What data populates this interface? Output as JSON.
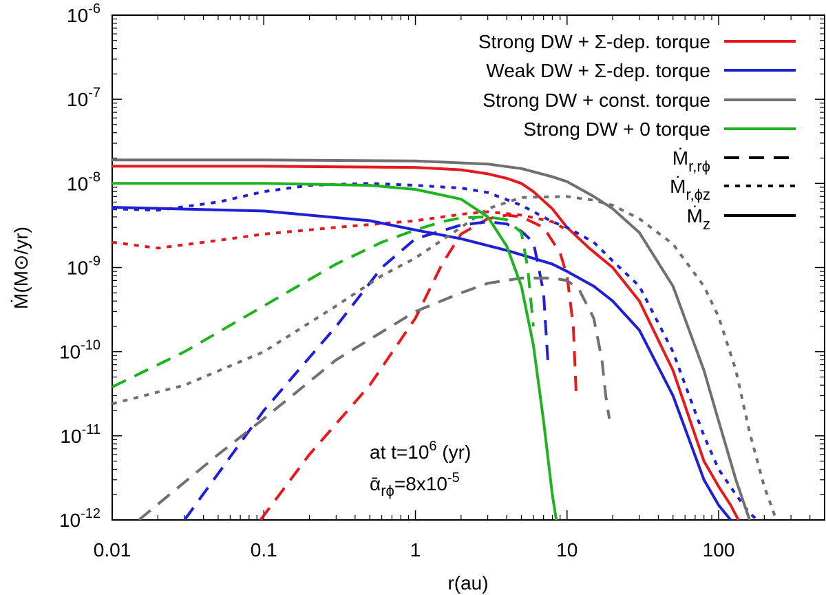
{
  "chart_data": {
    "type": "line",
    "xscale": "log",
    "yscale": "log",
    "xlim": [
      0.01,
      500
    ],
    "ylim": [
      1e-12,
      1e-06
    ],
    "xlabel": "r(au)",
    "ylabel": "Ṁ(M⊙/yr)",
    "x_ticks": [
      {
        "value": 0.01,
        "label": "0.01"
      },
      {
        "value": 0.1,
        "label": "0.1"
      },
      {
        "value": 1,
        "label": "1"
      },
      {
        "value": 10,
        "label": "10"
      },
      {
        "value": 100,
        "label": "100"
      }
    ],
    "y_ticks": [
      {
        "value": 1e-12,
        "base": "10",
        "exp": "-12"
      },
      {
        "value": 1e-11,
        "base": "10",
        "exp": "-11"
      },
      {
        "value": 1e-10,
        "base": "10",
        "exp": "-10"
      },
      {
        "value": 1e-09,
        "base": "10",
        "exp": "-9"
      },
      {
        "value": 1e-08,
        "base": "10",
        "exp": "-8"
      },
      {
        "value": 1e-07,
        "base": "10",
        "exp": "-7"
      },
      {
        "value": 1e-06,
        "base": "10",
        "exp": "-6"
      }
    ],
    "legend": {
      "placement": "top-right",
      "models": [
        {
          "label": "Strong DW + Σ-dep. torque",
          "color": "#e41a1c"
        },
        {
          "label": "Weak DW + Σ-dep. torque",
          "color": "#1f1fd6"
        },
        {
          "label": "Strong DW + const. torque",
          "color": "#707070"
        },
        {
          "label": "Strong DW + 0 torque",
          "color": "#1eb41e"
        }
      ],
      "styles": [
        {
          "main": "Ṁ",
          "sub": "r,rϕ",
          "dash": "dashed"
        },
        {
          "main": "Ṁ",
          "sub": "r,ϕz",
          "dash": "dotted"
        },
        {
          "main": "Ṁ",
          "sub": "z",
          "dash": "solid"
        }
      ]
    },
    "annotation": {
      "line1_prefix": "at t=10",
      "line1_exp": "6",
      "line1_suffix": " (yr)",
      "line2_symbol": "ᾱ",
      "line2_sub": "rϕ",
      "line2_value": "=8x10",
      "line2_exp": "-5"
    },
    "series": [
      {
        "name": "Strong DW + Σ-dep. torque Ṁz",
        "color": "#e41a1c",
        "dash": "solid",
        "x": [
          0.01,
          0.1,
          1,
          2,
          3,
          4,
          5,
          6,
          8,
          10,
          14,
          20,
          30,
          50,
          80,
          100,
          120,
          135
        ],
        "y": [
          1.6e-08,
          1.6e-08,
          1.55e-08,
          1.45e-08,
          1.3e-08,
          1.15e-08,
          1e-08,
          8e-09,
          5e-09,
          3e-09,
          1.7e-09,
          1e-09,
          4e-10,
          6e-11,
          5e-12,
          2.5e-12,
          1.5e-12,
          1e-12
        ]
      },
      {
        "name": "Strong DW + Σ-dep. torque Ṁr,ϕz",
        "color": "#e41a1c",
        "dash": "dotted",
        "x": [
          0.01,
          0.02,
          0.05,
          0.1,
          0.3,
          1,
          2,
          3,
          5,
          8,
          10
        ],
        "y": [
          2e-09,
          1.7e-09,
          2.1e-09,
          2.5e-09,
          3e-09,
          3.6e-09,
          4.3e-09,
          4.6e-09,
          4.2e-09,
          3.5e-09,
          2.8e-09
        ]
      },
      {
        "name": "Strong DW + Σ-dep. torque Ṁr,rϕ",
        "color": "#e41a1c",
        "dash": "dashed",
        "x": [
          0.095,
          0.2,
          0.5,
          1,
          1.5,
          2,
          3,
          4,
          5,
          7,
          9,
          10,
          11,
          11.5
        ],
        "y": [
          1e-12,
          6e-12,
          4e-11,
          2.5e-10,
          1.1e-09,
          2.5e-09,
          3.8e-09,
          4.2e-09,
          4e-09,
          3e-09,
          1.5e-09,
          8e-10,
          2e-10,
          3e-11
        ]
      },
      {
        "name": "Weak DW + Σ-dep. torque Ṁz",
        "color": "#1f1fd6",
        "dash": "solid",
        "x": [
          0.01,
          0.1,
          0.5,
          1,
          2,
          4,
          8,
          10,
          15,
          20,
          30,
          50,
          80,
          100,
          120
        ],
        "y": [
          5.2e-09,
          4.7e-09,
          3.6e-09,
          2.8e-09,
          2.2e-09,
          1.6e-09,
          1.1e-09,
          9e-10,
          6e-10,
          4e-10,
          1.8e-10,
          3e-11,
          3e-12,
          1.5e-12,
          1e-12
        ]
      },
      {
        "name": "Weak DW + Σ-dep. torque Ṁr,ϕz",
        "color": "#1f1fd6",
        "dash": "dotted",
        "x": [
          0.01,
          0.02,
          0.05,
          0.1,
          0.2,
          0.5,
          1,
          2,
          3,
          5,
          8,
          10,
          15,
          20,
          30,
          50,
          80,
          100,
          130,
          160,
          180
        ],
        "y": [
          5e-09,
          4.8e-09,
          6e-09,
          8e-09,
          9.5e-09,
          1e-08,
          9.5e-09,
          8.8e-09,
          7.8e-09,
          5.5e-09,
          3.5e-09,
          3e-09,
          2e-09,
          1.2e-09,
          6e-10,
          1e-10,
          1e-11,
          4e-12,
          2e-12,
          1.2e-12,
          1e-12
        ]
      },
      {
        "name": "Weak DW + Σ-dep. torque Ṁr,rϕ",
        "color": "#1f1fd6",
        "dash": "dashed",
        "x": [
          0.03,
          0.1,
          0.3,
          0.6,
          1,
          2,
          3,
          4,
          5,
          6,
          6.5,
          7,
          7.3,
          7.5
        ],
        "y": [
          1e-12,
          2e-11,
          2e-10,
          1e-09,
          2.2e-09,
          3.2e-09,
          3.5e-09,
          3.3e-09,
          2.7e-09,
          2e-09,
          1e-09,
          5e-10,
          1.5e-10,
          7e-11
        ]
      },
      {
        "name": "Strong DW + const. torque Ṁz",
        "color": "#707070",
        "dash": "solid",
        "x": [
          0.01,
          0.1,
          1,
          3,
          5,
          8,
          10,
          15,
          20,
          30,
          50,
          80,
          100,
          130,
          160
        ],
        "y": [
          1.9e-08,
          1.9e-08,
          1.85e-08,
          1.7e-08,
          1.5e-08,
          1.2e-08,
          1.05e-08,
          7e-09,
          5e-09,
          2.6e-09,
          6e-10,
          6e-11,
          1.5e-11,
          3e-12,
          1e-12
        ]
      },
      {
        "name": "Strong DW + const. torque Ṁr,ϕz",
        "color": "#707070",
        "dash": "dotted",
        "x": [
          0.01,
          0.03,
          0.1,
          0.3,
          0.6,
          1,
          2,
          3,
          5,
          10,
          15,
          20,
          30,
          50,
          80,
          100,
          130,
          160,
          200,
          240
        ],
        "y": [
          2.4e-11,
          4e-11,
          1e-10,
          3.5e-10,
          8e-10,
          1.3e-09,
          3e-09,
          5e-09,
          6.8e-09,
          7e-09,
          6.3e-09,
          5.5e-09,
          3.8e-09,
          1.9e-09,
          6e-10,
          2.6e-10,
          6e-11,
          1.1e-11,
          2.5e-12,
          1e-12
        ]
      },
      {
        "name": "Strong DW + const. torque Ṁr,rϕ",
        "color": "#707070",
        "dash": "dashed",
        "x": [
          0.015,
          0.05,
          0.1,
          0.3,
          1,
          2,
          3,
          5,
          8,
          10,
          12,
          15,
          17,
          18,
          19
        ],
        "y": [
          1e-12,
          6e-12,
          1.6e-11,
          8e-11,
          3e-10,
          5e-10,
          6.5e-10,
          7.5e-10,
          7.5e-10,
          7e-10,
          5.5e-10,
          2.5e-10,
          8e-11,
          3e-11,
          1.6e-11
        ]
      },
      {
        "name": "Strong DW + 0 torque Ṁz",
        "color": "#1eb41e",
        "dash": "solid",
        "x": [
          0.01,
          0.1,
          0.5,
          1,
          2,
          3,
          4,
          5,
          6,
          7,
          8,
          8.5
        ],
        "y": [
          1e-08,
          1e-08,
          9.5e-09,
          8.5e-09,
          6.5e-09,
          4e-09,
          1.8e-09,
          6e-10,
          1.2e-10,
          1.5e-11,
          2e-12,
          1e-12
        ]
      },
      {
        "name": "Strong DW + 0 torque Ṁr,rϕ",
        "color": "#1eb41e",
        "dash": "dashed",
        "x": [
          0.01,
          0.03,
          0.1,
          0.3,
          0.6,
          1,
          1.5,
          2,
          3,
          4,
          5,
          5.5,
          6
        ],
        "y": [
          3.8e-11,
          1e-10,
          3.5e-10,
          1.1e-09,
          2e-09,
          2.8e-09,
          3.5e-09,
          3.9e-09,
          4e-09,
          3.7e-09,
          2.6e-09,
          1e-09,
          2e-10
        ]
      }
    ]
  }
}
